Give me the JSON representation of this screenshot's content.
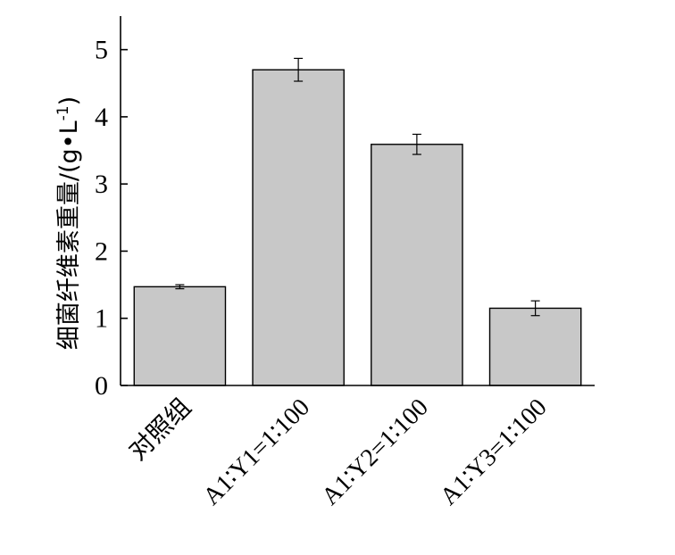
{
  "chart_data": {
    "type": "bar",
    "categories": [
      "对照组",
      "A1∶Y1=1∶100",
      "A1∶Y2=1∶100",
      "A1∶Y3=1∶100"
    ],
    "values": [
      1.47,
      4.7,
      3.59,
      1.15
    ],
    "errors": [
      0.03,
      0.17,
      0.15,
      0.11
    ],
    "title": "",
    "xlabel": "",
    "ylabel": "细菌纤维素重量/(g•L",
    "ylabel_superscript": "-1",
    "ylabel_suffix": ")",
    "ylim": [
      0,
      5.5
    ],
    "yticks": [
      0,
      1,
      2,
      3,
      4,
      5
    ],
    "grid": false,
    "legend": "none",
    "bar_color": "#c8c8c8",
    "edge_color": "#000000"
  }
}
